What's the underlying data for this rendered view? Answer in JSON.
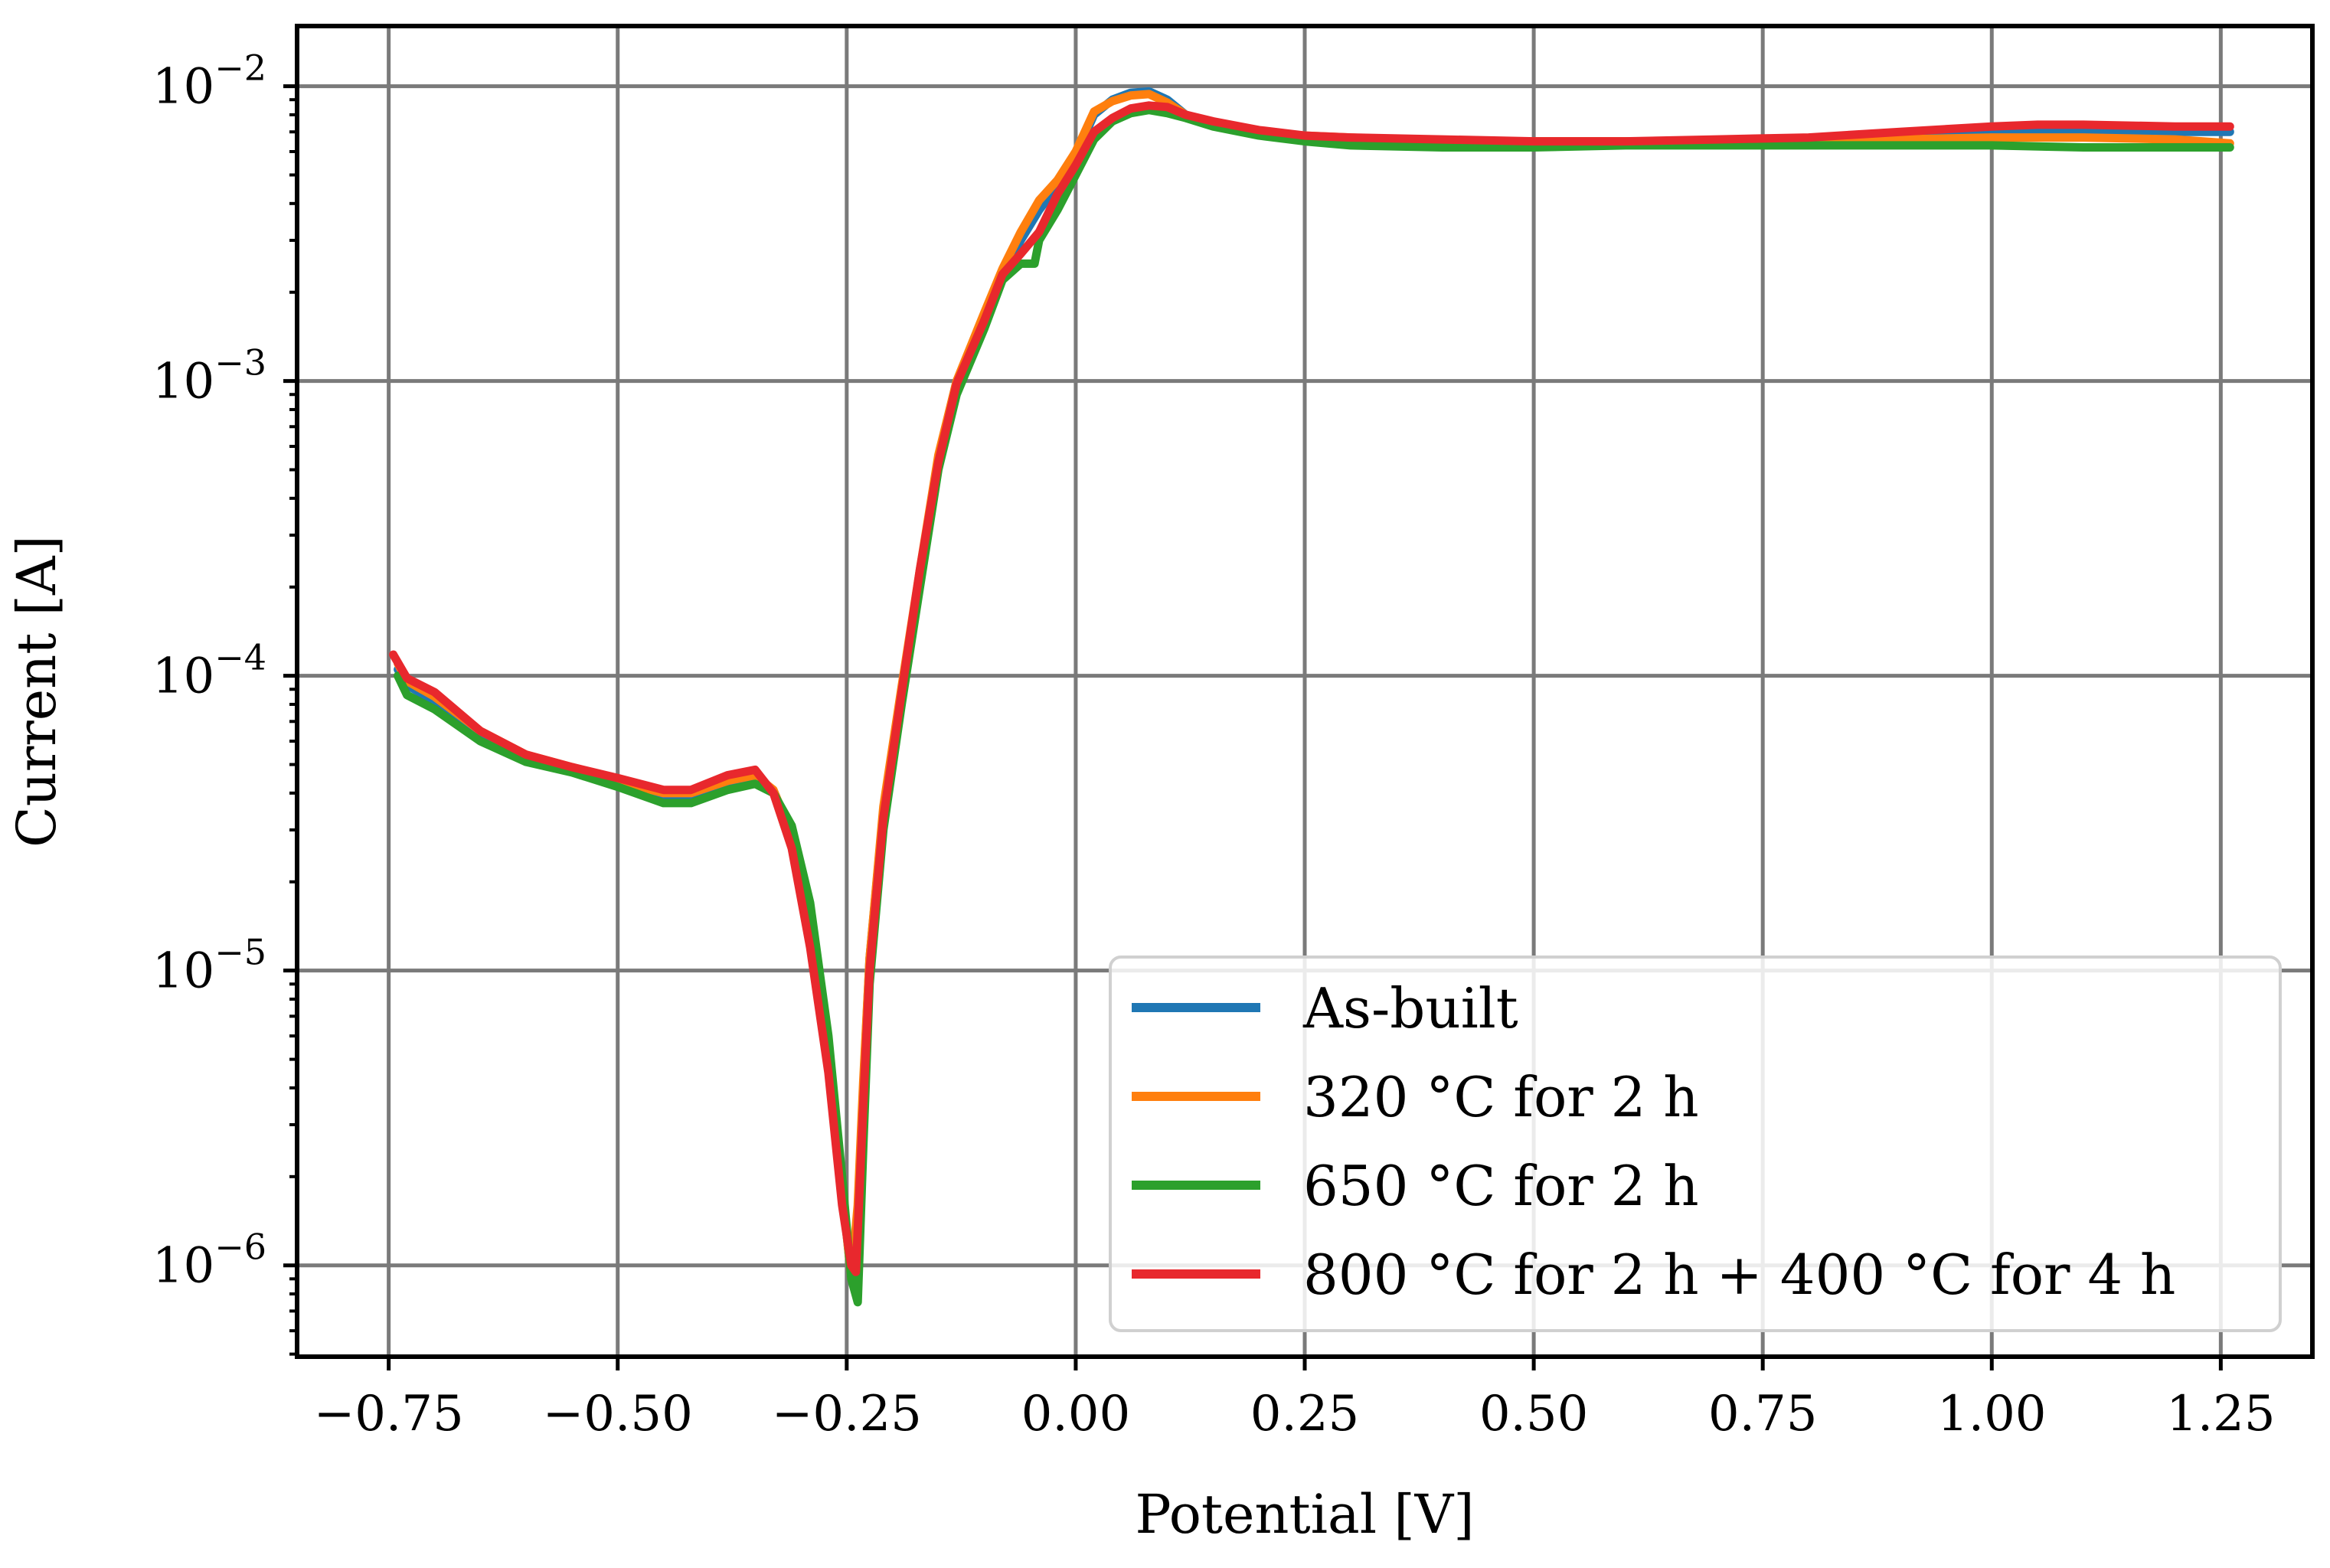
{
  "chart_data": {
    "type": "line",
    "title": "",
    "xlabel": "Potential [V]",
    "ylabel": "Current [A]",
    "xlim": [
      -0.85,
      1.35
    ],
    "ylim": [
      4.9e-07,
      0.016
    ],
    "yscale": "log",
    "grid": true,
    "legend_position": "lower-right",
    "x_ticks": [
      -0.75,
      -0.5,
      -0.25,
      0.0,
      0.25,
      0.5,
      0.75,
      1.0,
      1.25
    ],
    "x_tick_labels": [
      "−0.75",
      "−0.50",
      "−0.25",
      "0.00",
      "0.25",
      "0.50",
      "0.75",
      "1.00",
      "1.25"
    ],
    "y_ticks": [
      {
        "value": 1e-06,
        "base": "10",
        "exp": "−6"
      },
      {
        "value": 1e-05,
        "base": "10",
        "exp": "−5"
      },
      {
        "value": 0.0001,
        "base": "10",
        "exp": "−4"
      },
      {
        "value": 0.001,
        "base": "10",
        "exp": "−3"
      },
      {
        "value": 0.01,
        "base": "10",
        "exp": "−2"
      }
    ],
    "series": [
      {
        "name": "As-built",
        "color": "#1f77b4",
        "x": [
          -0.74,
          -0.73,
          -0.7,
          -0.65,
          -0.6,
          -0.55,
          -0.5,
          -0.45,
          -0.42,
          -0.38,
          -0.35,
          -0.33,
          -0.31,
          -0.29,
          -0.27,
          -0.255,
          -0.245,
          -0.238,
          -0.232,
          -0.225,
          -0.21,
          -0.19,
          -0.17,
          -0.15,
          -0.13,
          -0.1,
          -0.08,
          -0.06,
          -0.04,
          -0.02,
          0.0,
          0.02,
          0.04,
          0.06,
          0.08,
          0.1,
          0.12,
          0.15,
          0.2,
          0.25,
          0.3,
          0.4,
          0.5,
          0.6,
          0.7,
          0.8,
          0.9,
          1.0,
          1.1,
          1.2,
          1.26
        ],
        "y": [
          0.000105,
          9.3e-05,
          8.2e-05,
          6.3e-05,
          5.3e-05,
          4.8e-05,
          4.3e-05,
          3.9e-05,
          3.9e-05,
          4.3e-05,
          4.5e-05,
          4e-05,
          2.8e-05,
          1.4e-05,
          5e-06,
          1.8e-06,
          9e-07,
          1.5e-06,
          4e-06,
          1.1e-05,
          3.5e-05,
          9e-05,
          0.00022,
          0.00055,
          0.001,
          0.0016,
          0.0023,
          0.003,
          0.0038,
          0.0046,
          0.0058,
          0.008,
          0.009,
          0.0095,
          0.0096,
          0.009,
          0.008,
          0.0075,
          0.007,
          0.0067,
          0.0066,
          0.0065,
          0.0065,
          0.0065,
          0.0065,
          0.0066,
          0.0067,
          0.0069,
          0.007,
          0.007,
          0.007
        ]
      },
      {
        "name": "320 °C for 2 h",
        "color": "#ff7f0e",
        "x": [
          -0.74,
          -0.73,
          -0.7,
          -0.65,
          -0.6,
          -0.55,
          -0.5,
          -0.45,
          -0.42,
          -0.38,
          -0.35,
          -0.33,
          -0.31,
          -0.29,
          -0.27,
          -0.255,
          -0.245,
          -0.238,
          -0.232,
          -0.225,
          -0.21,
          -0.19,
          -0.17,
          -0.15,
          -0.13,
          -0.1,
          -0.08,
          -0.06,
          -0.04,
          -0.02,
          0.0,
          0.02,
          0.04,
          0.06,
          0.08,
          0.1,
          0.12,
          0.15,
          0.2,
          0.25,
          0.3,
          0.4,
          0.5,
          0.6,
          0.7,
          0.8,
          0.9,
          1.0,
          1.1,
          1.2,
          1.26
        ],
        "y": [
          0.00011,
          9.6e-05,
          8.5e-05,
          6.5e-05,
          5.4e-05,
          4.9e-05,
          4.4e-05,
          4e-05,
          4e-05,
          4.4e-05,
          4.6e-05,
          4.1e-05,
          2.9e-05,
          1.4e-05,
          5e-06,
          1.8e-06,
          9e-07,
          1.6e-06,
          4.2e-06,
          1.1e-05,
          3.6e-05,
          9.2e-05,
          0.00023,
          0.00056,
          0.001,
          0.0017,
          0.0024,
          0.0032,
          0.0041,
          0.0048,
          0.006,
          0.0082,
          0.0089,
          0.0093,
          0.0094,
          0.0088,
          0.008,
          0.0075,
          0.007,
          0.0068,
          0.0067,
          0.0065,
          0.0065,
          0.0065,
          0.0065,
          0.0065,
          0.0066,
          0.0067,
          0.0067,
          0.0066,
          0.0064
        ]
      },
      {
        "name": "650 °C for 2 h",
        "color": "#2ca02c",
        "x": [
          -0.74,
          -0.73,
          -0.7,
          -0.65,
          -0.6,
          -0.55,
          -0.5,
          -0.45,
          -0.42,
          -0.38,
          -0.35,
          -0.33,
          -0.31,
          -0.29,
          -0.27,
          -0.255,
          -0.245,
          -0.238,
          -0.232,
          -0.225,
          -0.21,
          -0.19,
          -0.17,
          -0.15,
          -0.13,
          -0.1,
          -0.08,
          -0.06,
          -0.045,
          -0.04,
          -0.02,
          0.0,
          0.02,
          0.04,
          0.06,
          0.08,
          0.1,
          0.12,
          0.15,
          0.2,
          0.25,
          0.3,
          0.4,
          0.5,
          0.6,
          0.7,
          0.8,
          0.9,
          1.0,
          1.1,
          1.2,
          1.26
        ],
        "y": [
          0.0001,
          8.6e-05,
          7.7e-05,
          6e-05,
          5.1e-05,
          4.7e-05,
          4.2e-05,
          3.7e-05,
          3.7e-05,
          4.1e-05,
          4.3e-05,
          4e-05,
          3.1e-05,
          1.7e-05,
          6e-06,
          2e-06,
          9e-07,
          7.5e-07,
          2.5e-06,
          9e-06,
          3e-05,
          8e-05,
          0.0002,
          0.0005,
          0.0009,
          0.0015,
          0.0022,
          0.0025,
          0.0025,
          0.003,
          0.0038,
          0.005,
          0.0066,
          0.0076,
          0.0081,
          0.0083,
          0.0081,
          0.0078,
          0.0073,
          0.0068,
          0.0065,
          0.0063,
          0.0062,
          0.0062,
          0.0063,
          0.0063,
          0.0063,
          0.0063,
          0.0063,
          0.0062,
          0.0062,
          0.0062
        ]
      },
      {
        "name": "800 °C for 2 h + 400 °C for 4 h",
        "color": "#e8282d",
        "x": [
          -0.745,
          -0.73,
          -0.7,
          -0.65,
          -0.6,
          -0.55,
          -0.5,
          -0.45,
          -0.42,
          -0.38,
          -0.35,
          -0.33,
          -0.31,
          -0.29,
          -0.27,
          -0.255,
          -0.245,
          -0.24,
          -0.232,
          -0.225,
          -0.21,
          -0.19,
          -0.17,
          -0.15,
          -0.13,
          -0.1,
          -0.08,
          -0.06,
          -0.04,
          -0.02,
          0.0,
          0.02,
          0.04,
          0.06,
          0.08,
          0.1,
          0.12,
          0.15,
          0.2,
          0.25,
          0.3,
          0.4,
          0.5,
          0.6,
          0.7,
          0.8,
          0.9,
          1.0,
          1.05,
          1.1,
          1.2,
          1.26
        ],
        "y": [
          0.000118,
          9.8e-05,
          8.8e-05,
          6.5e-05,
          5.4e-05,
          4.9e-05,
          4.5e-05,
          4.1e-05,
          4.1e-05,
          4.6e-05,
          4.8e-05,
          4e-05,
          2.6e-05,
          1.2e-05,
          4.5e-06,
          1.6e-06,
          1e-06,
          9.5e-07,
          3.5e-06,
          1e-05,
          3.3e-05,
          8.8e-05,
          0.00023,
          0.00053,
          0.00098,
          0.0016,
          0.0023,
          0.0027,
          0.0032,
          0.0043,
          0.0054,
          0.007,
          0.0078,
          0.0084,
          0.0086,
          0.0085,
          0.008,
          0.0076,
          0.0071,
          0.0068,
          0.0067,
          0.0066,
          0.0065,
          0.0065,
          0.0066,
          0.0067,
          0.007,
          0.0073,
          0.0074,
          0.0074,
          0.0073,
          0.0073
        ]
      }
    ]
  }
}
